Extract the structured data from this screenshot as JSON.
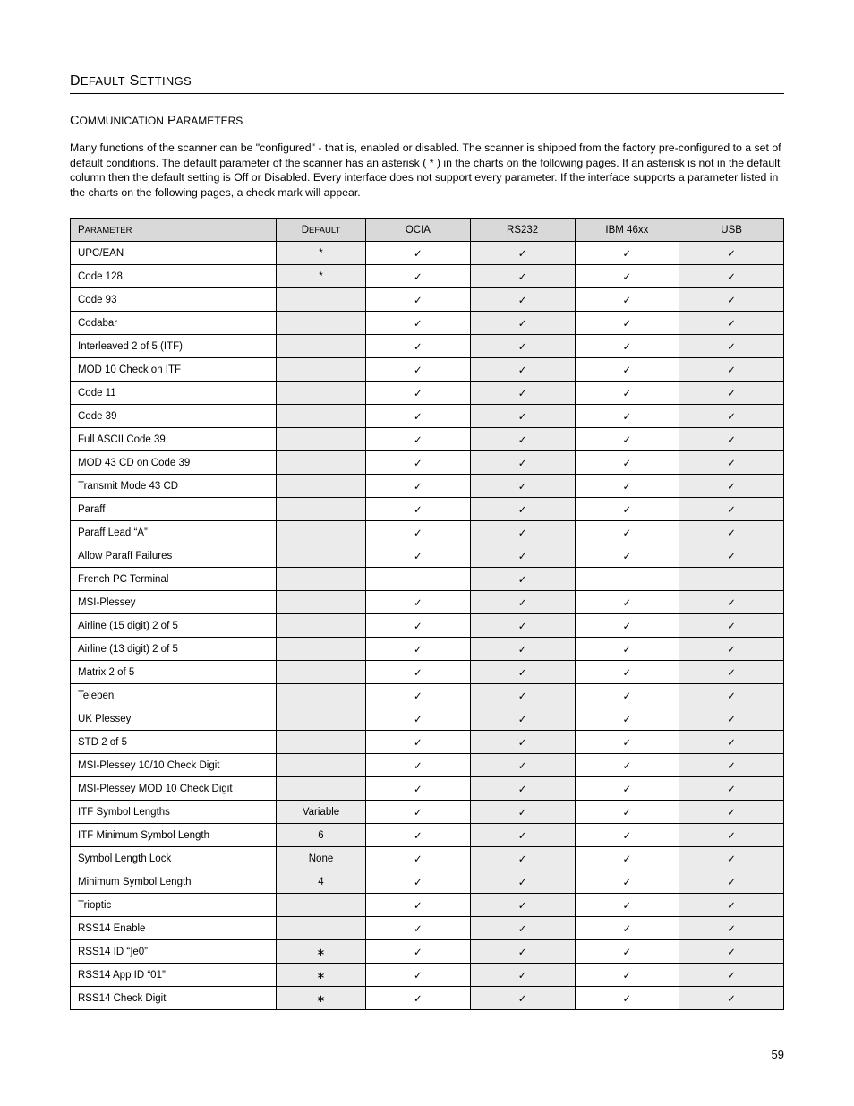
{
  "page_number": "59",
  "section_title": {
    "smallcaps": [
      "D",
      "EFAULT",
      " S",
      "ETTINGS"
    ]
  },
  "subsection_title": {
    "smallcaps": [
      "C",
      "OMMUNICATION",
      " P",
      "ARAMETERS"
    ]
  },
  "body_text": "Many functions of the scanner can be \"configured\" - that is, enabled or disabled.  The scanner is shipped from the factory pre-configured to a set of default conditions.  The default parameter of the scanner has an asterisk ( * ) in the charts on the following pages.  If an asterisk is not in the default column then the default setting is Off or Disabled.  Every interface does not support every parameter.  If the interface supports a parameter listed in the charts on the following pages, a check mark will appear.",
  "table": {
    "check_glyph": "✓",
    "star_glyph": "*",
    "header_bg": "#d9d9d9",
    "shade_bg": "#ebebeb",
    "border_color": "#000000",
    "columns": [
      {
        "key": "parameter",
        "smallcaps": [
          "P",
          "ARAMETER"
        ],
        "align": "left",
        "shaded": false
      },
      {
        "key": "default",
        "smallcaps": [
          "D",
          "EFAULT"
        ],
        "align": "center",
        "shaded": true
      },
      {
        "key": "ocia",
        "label": "OCIA",
        "align": "center",
        "shaded": false
      },
      {
        "key": "rs232",
        "label": "RS232",
        "align": "center",
        "shaded": true
      },
      {
        "key": "ibm46xx",
        "label": "IBM 46xx",
        "align": "center",
        "shaded": false
      },
      {
        "key": "usb",
        "label": "USB",
        "align": "center",
        "shaded": true
      }
    ],
    "rows": [
      {
        "parameter": "UPC/EAN",
        "default": "*",
        "ocia": true,
        "rs232": true,
        "ibm46xx": true,
        "usb": true
      },
      {
        "parameter": "Code 128",
        "default": "*",
        "ocia": true,
        "rs232": true,
        "ibm46xx": true,
        "usb": true
      },
      {
        "parameter": "Code 93",
        "default": "",
        "ocia": true,
        "rs232": true,
        "ibm46xx": true,
        "usb": true
      },
      {
        "parameter": "Codabar",
        "default": "",
        "ocia": true,
        "rs232": true,
        "ibm46xx": true,
        "usb": true
      },
      {
        "parameter": "Interleaved 2 of 5 (ITF)",
        "default": "",
        "ocia": true,
        "rs232": true,
        "ibm46xx": true,
        "usb": true
      },
      {
        "parameter": "MOD 10 Check on ITF",
        "default": "",
        "ocia": true,
        "rs232": true,
        "ibm46xx": true,
        "usb": true
      },
      {
        "parameter": "Code 11",
        "default": "",
        "ocia": true,
        "rs232": true,
        "ibm46xx": true,
        "usb": true
      },
      {
        "parameter": "Code 39",
        "default": "",
        "ocia": true,
        "rs232": true,
        "ibm46xx": true,
        "usb": true
      },
      {
        "parameter": "Full ASCII Code 39",
        "default": "",
        "ocia": true,
        "rs232": true,
        "ibm46xx": true,
        "usb": true
      },
      {
        "parameter": "MOD 43 CD on Code 39",
        "default": "",
        "ocia": true,
        "rs232": true,
        "ibm46xx": true,
        "usb": true
      },
      {
        "parameter": "Transmit Mode 43 CD",
        "default": "",
        "ocia": true,
        "rs232": true,
        "ibm46xx": true,
        "usb": true
      },
      {
        "parameter": "Paraff",
        "default": "",
        "ocia": true,
        "rs232": true,
        "ibm46xx": true,
        "usb": true
      },
      {
        "parameter": "Paraff Lead “A”",
        "default": "",
        "ocia": true,
        "rs232": true,
        "ibm46xx": true,
        "usb": true
      },
      {
        "parameter": "Allow Paraff Failures",
        "default": "",
        "ocia": true,
        "rs232": true,
        "ibm46xx": true,
        "usb": true
      },
      {
        "parameter": "French PC Terminal",
        "default": "",
        "ocia": false,
        "rs232": true,
        "ibm46xx": false,
        "usb": false
      },
      {
        "parameter": "MSI-Plessey",
        "default": "",
        "ocia": true,
        "rs232": true,
        "ibm46xx": true,
        "usb": true
      },
      {
        "parameter": "Airline (15 digit) 2 of 5",
        "default": "",
        "ocia": true,
        "rs232": true,
        "ibm46xx": true,
        "usb": true
      },
      {
        "parameter": "Airline (13 digit) 2 of 5",
        "default": "",
        "ocia": true,
        "rs232": true,
        "ibm46xx": true,
        "usb": true
      },
      {
        "parameter": "Matrix 2 of 5",
        "default": "",
        "ocia": true,
        "rs232": true,
        "ibm46xx": true,
        "usb": true
      },
      {
        "parameter": "Telepen",
        "default": "",
        "ocia": true,
        "rs232": true,
        "ibm46xx": true,
        "usb": true
      },
      {
        "parameter": "UK Plessey",
        "default": "",
        "ocia": true,
        "rs232": true,
        "ibm46xx": true,
        "usb": true
      },
      {
        "parameter": "STD 2 of 5",
        "default": "",
        "ocia": true,
        "rs232": true,
        "ibm46xx": true,
        "usb": true
      },
      {
        "parameter": "MSI-Plessey 10/10 Check Digit",
        "default": "",
        "ocia": true,
        "rs232": true,
        "ibm46xx": true,
        "usb": true
      },
      {
        "parameter": "MSI-Plessey MOD 10 Check Digit",
        "default": "",
        "ocia": true,
        "rs232": true,
        "ibm46xx": true,
        "usb": true
      },
      {
        "parameter": "ITF Symbol Lengths",
        "default": "Variable",
        "ocia": true,
        "rs232": true,
        "ibm46xx": true,
        "usb": true
      },
      {
        "parameter": "ITF Minimum Symbol Length",
        "default": "6",
        "ocia": true,
        "rs232": true,
        "ibm46xx": true,
        "usb": true
      },
      {
        "parameter": "Symbol Length Lock",
        "default": "None",
        "ocia": true,
        "rs232": true,
        "ibm46xx": true,
        "usb": true
      },
      {
        "parameter": "Minimum Symbol Length",
        "default": "4",
        "ocia": true,
        "rs232": true,
        "ibm46xx": true,
        "usb": true
      },
      {
        "parameter": "Trioptic",
        "default": "",
        "ocia": true,
        "rs232": true,
        "ibm46xx": true,
        "usb": true
      },
      {
        "parameter": "RSS14 Enable",
        "default": "",
        "ocia": true,
        "rs232": true,
        "ibm46xx": true,
        "usb": true
      },
      {
        "parameter": "RSS14 ID “]e0”",
        "default": "*",
        "ocia": true,
        "rs232": true,
        "ibm46xx": true,
        "usb": true,
        "default_variant": "wide-star"
      },
      {
        "parameter": "RSS14 App ID “01”",
        "default": "*",
        "ocia": true,
        "rs232": true,
        "ibm46xx": true,
        "usb": true,
        "default_variant": "wide-star"
      },
      {
        "parameter": "RSS14 Check Digit",
        "default": "*",
        "ocia": true,
        "rs232": true,
        "ibm46xx": true,
        "usb": true,
        "default_variant": "wide-star"
      }
    ]
  }
}
